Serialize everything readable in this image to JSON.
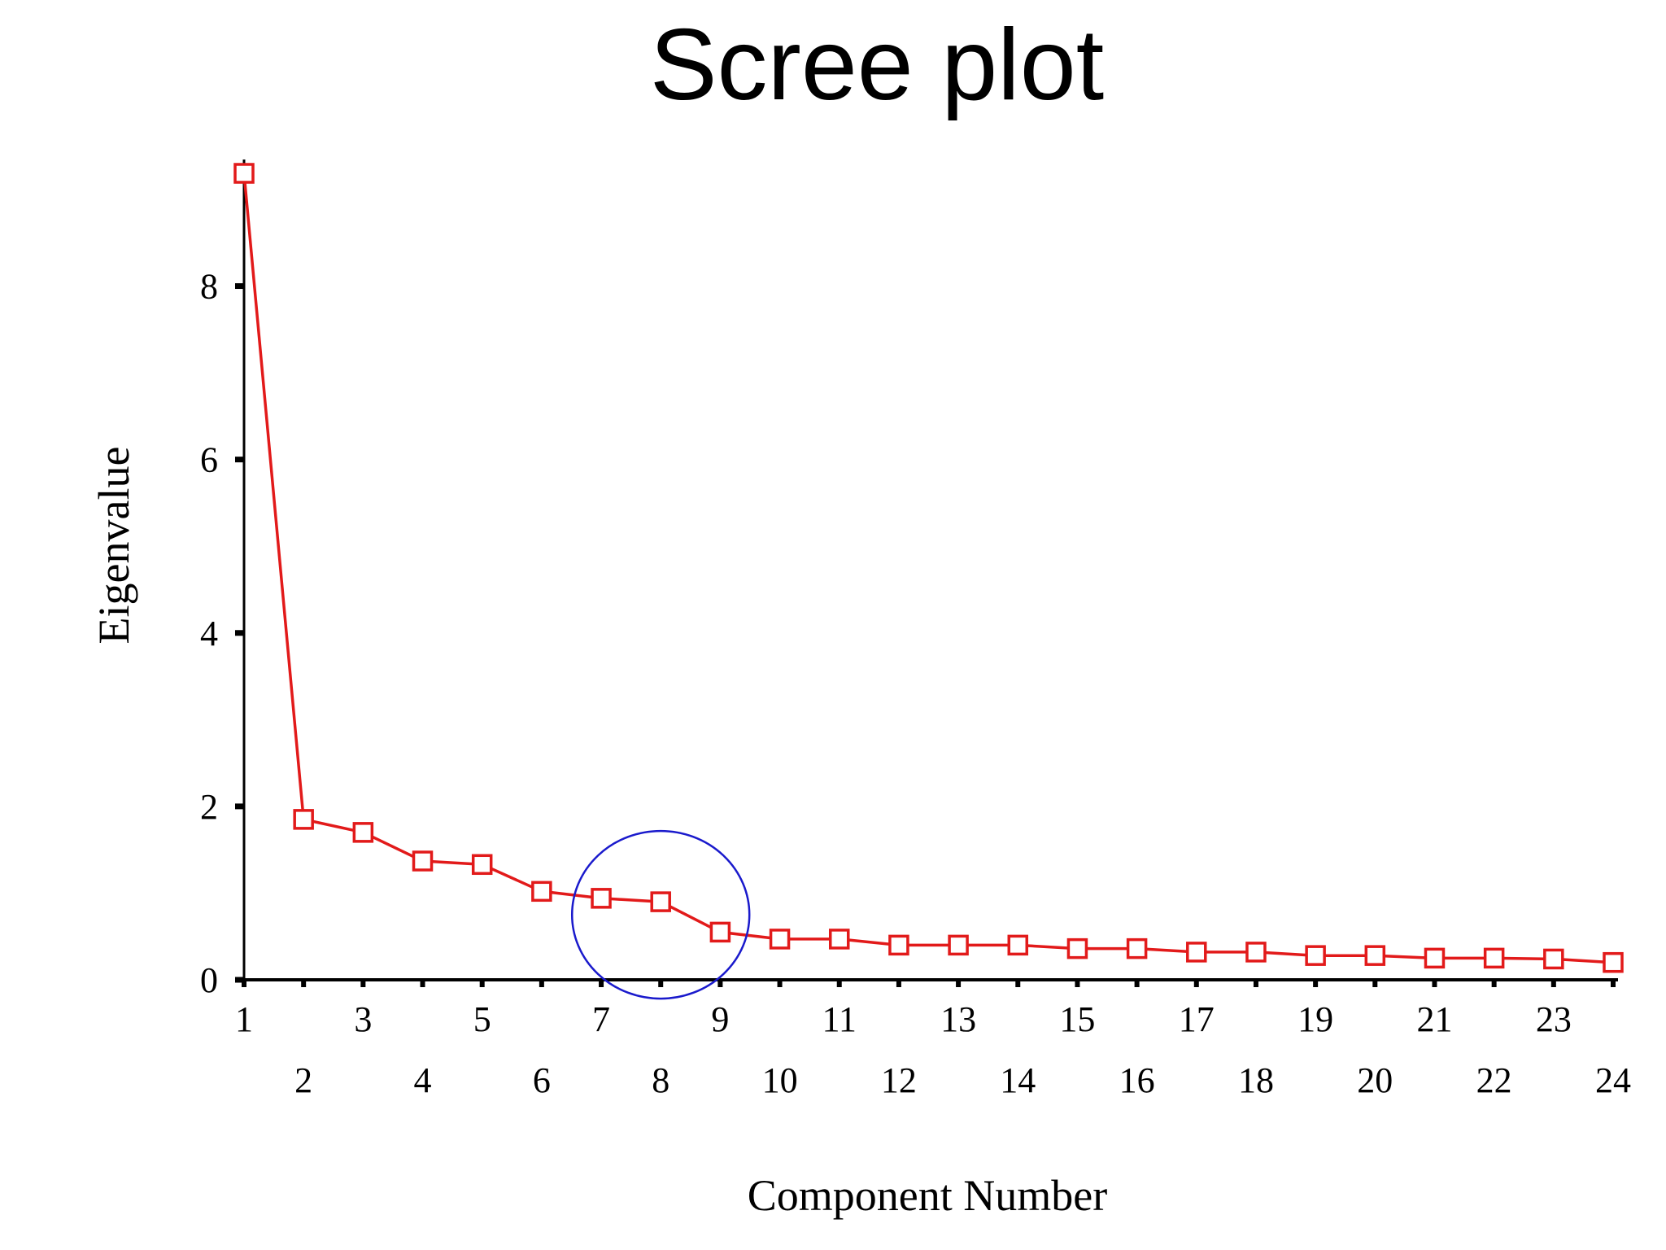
{
  "chart_data": {
    "type": "line",
    "title": "Scree plot",
    "xlabel": "Component Number",
    "ylabel": "Eigenvalue",
    "x": [
      1,
      2,
      3,
      4,
      5,
      6,
      7,
      8,
      9,
      10,
      11,
      12,
      13,
      14,
      15,
      16,
      17,
      18,
      19,
      20,
      21,
      22,
      23,
      24
    ],
    "series": [
      {
        "values": [
          9.3,
          1.85,
          1.7,
          1.37,
          1.33,
          1.02,
          0.94,
          0.9,
          0.55,
          0.47,
          0.47,
          0.4,
          0.4,
          0.4,
          0.36,
          0.36,
          0.32,
          0.32,
          0.28,
          0.28,
          0.25,
          0.25,
          0.24,
          0.2
        ]
      }
    ],
    "xlim": [
      1,
      24
    ],
    "ylim": [
      0,
      9.3
    ],
    "y_ticks": [
      0,
      2,
      4,
      6,
      8
    ],
    "x_ticks_upper": [
      "1",
      "3",
      "5",
      "7",
      "9",
      "11",
      "13",
      "15",
      "17",
      "19",
      "21",
      "23"
    ],
    "x_ticks_lower": [
      "2",
      "4",
      "6",
      "8",
      "10",
      "12",
      "14",
      "16",
      "18",
      "20",
      "22",
      "24"
    ],
    "grid": false,
    "legend": "none",
    "highlight": {
      "x": 8,
      "y": 0.75
    },
    "colors": {
      "series": "#e21a1a",
      "marker_fill": "#ffffff",
      "highlight_circle": "#1a1acc",
      "axis": "#000000"
    }
  }
}
